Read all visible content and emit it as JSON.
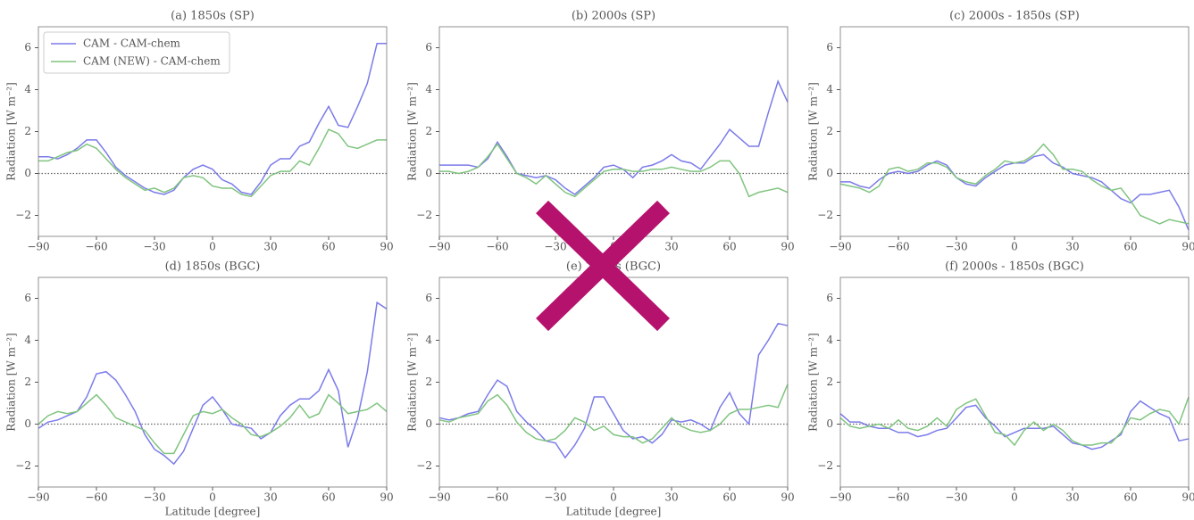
{
  "chart_data": [
    {
      "type": "line",
      "title": "(a) 1850s (SP)",
      "ylabel": "Radiation [W m⁻²]",
      "legend": "upper left",
      "reference_line": 0,
      "x": [
        -90,
        -85,
        -80,
        -75,
        -70,
        -65,
        -60,
        -55,
        -50,
        -45,
        -40,
        -35,
        -30,
        -25,
        -20,
        -15,
        -10,
        -5,
        0,
        5,
        10,
        15,
        20,
        25,
        30,
        35,
        40,
        45,
        50,
        55,
        60,
        65,
        70,
        75,
        80,
        85,
        90
      ],
      "series": [
        {
          "name": "CAM - CAM-chem",
          "color": "#7b7bea",
          "values": [
            0.8,
            0.8,
            0.7,
            0.9,
            1.2,
            1.6,
            1.6,
            1.0,
            0.3,
            -0.1,
            -0.4,
            -0.7,
            -0.9,
            -1.0,
            -0.8,
            -0.2,
            0.2,
            0.4,
            0.2,
            -0.3,
            -0.5,
            -0.9,
            -1.0,
            -0.4,
            0.4,
            0.7,
            0.7,
            1.3,
            1.5,
            2.4,
            3.2,
            2.3,
            2.2,
            3.2,
            4.3,
            6.2,
            6.2
          ]
        },
        {
          "name": "CAM (NEW) - CAM-chem",
          "color": "#80c47f",
          "values": [
            0.6,
            0.6,
            0.8,
            1.0,
            1.1,
            1.4,
            1.2,
            0.7,
            0.2,
            -0.2,
            -0.5,
            -0.8,
            -0.7,
            -0.9,
            -0.7,
            -0.2,
            -0.1,
            -0.2,
            -0.6,
            -0.7,
            -0.7,
            -1.0,
            -1.1,
            -0.6,
            -0.1,
            0.1,
            0.1,
            0.6,
            0.4,
            1.2,
            2.1,
            1.9,
            1.3,
            1.2,
            1.4,
            1.6,
            1.6
          ]
        }
      ],
      "xlim": [
        -90,
        90
      ],
      "xticks": [
        {
          "value": -90,
          "label": "−90"
        },
        {
          "value": -60,
          "label": "−60"
        },
        {
          "value": -30,
          "label": "−30"
        },
        0,
        30,
        60,
        90
      ],
      "ylim": [
        -3,
        7
      ],
      "yticks": [
        {
          "value": -2,
          "label": "−2"
        },
        0,
        2,
        4,
        6
      ]
    },
    {
      "type": "line",
      "title": "(b) 2000s (SP)",
      "ylabel": "Radiation [W m⁻²]",
      "reference_line": 0,
      "x": [
        -90,
        -85,
        -80,
        -75,
        -70,
        -65,
        -60,
        -55,
        -50,
        -45,
        -40,
        -35,
        -30,
        -25,
        -20,
        -15,
        -10,
        -5,
        0,
        5,
        10,
        15,
        20,
        25,
        30,
        35,
        40,
        45,
        50,
        55,
        60,
        65,
        70,
        75,
        80,
        85,
        90
      ],
      "series": [
        {
          "color": "#7b7bea",
          "values": [
            0.4,
            0.4,
            0.4,
            0.4,
            0.3,
            0.7,
            1.5,
            0.8,
            0.0,
            -0.1,
            -0.2,
            -0.1,
            -0.3,
            -0.7,
            -1.0,
            -0.6,
            -0.2,
            0.3,
            0.4,
            0.2,
            -0.2,
            0.3,
            0.4,
            0.6,
            0.9,
            0.6,
            0.5,
            0.2,
            0.8,
            1.4,
            2.1,
            1.7,
            1.3,
            1.3,
            2.9,
            4.4,
            3.4
          ]
        },
        {
          "color": "#80c47f",
          "values": [
            0.1,
            0.1,
            0.0,
            0.1,
            0.3,
            0.8,
            1.4,
            0.7,
            0.0,
            -0.2,
            -0.5,
            -0.1,
            -0.5,
            -0.9,
            -1.1,
            -0.7,
            -0.3,
            0.1,
            0.2,
            0.2,
            0.1,
            0.1,
            0.2,
            0.2,
            0.3,
            0.2,
            0.1,
            0.1,
            0.3,
            0.6,
            0.6,
            0.0,
            -1.1,
            -0.9,
            -0.8,
            -0.7,
            -0.9
          ]
        }
      ],
      "xlim": [
        -90,
        90
      ],
      "xticks": [
        {
          "value": -90,
          "label": "−90"
        },
        {
          "value": -60,
          "label": "−60"
        },
        {
          "value": -30,
          "label": "−30"
        },
        0,
        30,
        60,
        90
      ],
      "ylim": [
        -3,
        7
      ],
      "yticks": [
        {
          "value": -2,
          "label": "−2"
        },
        0,
        2,
        4,
        6
      ]
    },
    {
      "type": "line",
      "title": "(c) 2000s - 1850s (SP)",
      "ylabel": "Radiation [W m⁻²]",
      "reference_line": 0,
      "x": [
        -90,
        -85,
        -80,
        -75,
        -70,
        -65,
        -60,
        -55,
        -50,
        -45,
        -40,
        -35,
        -30,
        -25,
        -20,
        -15,
        -10,
        -5,
        0,
        5,
        10,
        15,
        20,
        25,
        30,
        35,
        40,
        45,
        50,
        55,
        60,
        65,
        70,
        75,
        80,
        85,
        90
      ],
      "series": [
        {
          "color": "#7b7bea",
          "values": [
            -0.4,
            -0.4,
            -0.6,
            -0.7,
            -0.3,
            0.0,
            0.1,
            0.0,
            0.1,
            0.4,
            0.6,
            0.4,
            -0.2,
            -0.5,
            -0.6,
            -0.2,
            0.1,
            0.4,
            0.5,
            0.5,
            0.8,
            0.9,
            0.5,
            0.3,
            0.0,
            -0.1,
            -0.2,
            -0.4,
            -0.8,
            -1.2,
            -1.4,
            -1.0,
            -1.0,
            -0.9,
            -0.8,
            -1.6,
            -2.7
          ]
        },
        {
          "color": "#80c47f",
          "values": [
            -0.5,
            -0.6,
            -0.7,
            -0.9,
            -0.6,
            0.2,
            0.3,
            0.1,
            0.2,
            0.5,
            0.5,
            0.3,
            -0.2,
            -0.4,
            -0.5,
            -0.1,
            0.2,
            0.6,
            0.5,
            0.6,
            0.9,
            1.4,
            0.9,
            0.2,
            0.2,
            0.1,
            -0.3,
            -0.6,
            -0.8,
            -0.7,
            -1.3,
            -2.0,
            -2.2,
            -2.4,
            -2.2,
            -2.3,
            -2.4
          ]
        }
      ],
      "xlim": [
        -90,
        90
      ],
      "xticks": [
        {
          "value": -90,
          "label": "−90"
        },
        {
          "value": -60,
          "label": "−60"
        },
        {
          "value": -30,
          "label": "−30"
        },
        0,
        30,
        60,
        90
      ],
      "ylim": [
        -3,
        7
      ],
      "yticks": [
        {
          "value": -2,
          "label": "−2"
        },
        0,
        2,
        4,
        6
      ]
    },
    {
      "type": "line",
      "title": "(d) 1850s (BGC)",
      "ylabel": "Radiation [W m⁻²]",
      "xlabel": "Latitude [degree]",
      "reference_line": 0,
      "x": [
        -90,
        -85,
        -80,
        -75,
        -70,
        -65,
        -60,
        -55,
        -50,
        -45,
        -40,
        -35,
        -30,
        -25,
        -20,
        -15,
        -10,
        -5,
        0,
        5,
        10,
        15,
        20,
        25,
        30,
        35,
        40,
        45,
        50,
        55,
        60,
        65,
        70,
        75,
        80,
        85,
        90
      ],
      "series": [
        {
          "color": "#7b7bea",
          "values": [
            -0.2,
            0.1,
            0.2,
            0.4,
            0.6,
            1.3,
            2.4,
            2.5,
            2.1,
            1.4,
            0.6,
            -0.5,
            -1.2,
            -1.5,
            -1.9,
            -1.3,
            -0.2,
            0.9,
            1.3,
            0.7,
            0.0,
            -0.1,
            -0.2,
            -0.7,
            -0.4,
            0.4,
            0.9,
            1.2,
            1.2,
            1.6,
            2.6,
            1.6,
            -1.1,
            0.3,
            2.5,
            5.8,
            5.5
          ]
        },
        {
          "color": "#80c47f",
          "values": [
            0.0,
            0.4,
            0.6,
            0.5,
            0.6,
            1.0,
            1.4,
            0.9,
            0.3,
            0.1,
            -0.1,
            -0.3,
            -0.9,
            -1.4,
            -1.4,
            -0.5,
            0.4,
            0.6,
            0.5,
            0.7,
            0.3,
            0.0,
            -0.5,
            -0.6,
            -0.4,
            -0.1,
            0.3,
            0.9,
            0.3,
            0.5,
            1.4,
            1.0,
            0.5,
            0.6,
            0.7,
            1.0,
            0.6
          ]
        }
      ],
      "xlim": [
        -90,
        90
      ],
      "xticks": [
        {
          "value": -90,
          "label": "−90"
        },
        {
          "value": -60,
          "label": "−60"
        },
        {
          "value": -30,
          "label": "−30"
        },
        0,
        30,
        60,
        90
      ],
      "ylim": [
        -3,
        7
      ],
      "yticks": [
        {
          "value": -2,
          "label": "−2"
        },
        0,
        2,
        4,
        6
      ]
    },
    {
      "type": "line",
      "title": "(e) 2000s (BGC)",
      "ylabel": "Radiation [W m⁻²]",
      "xlabel": "Latitude [degree]",
      "reference_line": 0,
      "x": [
        -90,
        -85,
        -80,
        -75,
        -70,
        -65,
        -60,
        -55,
        -50,
        -45,
        -40,
        -35,
        -30,
        -25,
        -20,
        -15,
        -10,
        -5,
        0,
        5,
        10,
        15,
        20,
        25,
        30,
        35,
        40,
        45,
        50,
        55,
        60,
        65,
        70,
        75,
        80,
        85,
        90
      ],
      "series": [
        {
          "color": "#7b7bea",
          "values": [
            0.3,
            0.2,
            0.3,
            0.5,
            0.6,
            1.4,
            2.1,
            1.8,
            0.6,
            0.1,
            -0.3,
            -0.8,
            -0.9,
            -1.6,
            -1.0,
            -0.2,
            1.3,
            1.3,
            0.5,
            -0.3,
            -0.7,
            -0.6,
            -0.9,
            -0.5,
            0.2,
            0.1,
            0.2,
            0.0,
            -0.3,
            0.8,
            1.5,
            0.5,
            0.0,
            3.3,
            4.0,
            4.8,
            4.7
          ]
        },
        {
          "color": "#80c47f",
          "values": [
            0.2,
            0.1,
            0.3,
            0.4,
            0.5,
            1.1,
            1.4,
            0.9,
            0.1,
            -0.4,
            -0.7,
            -0.8,
            -0.7,
            -0.3,
            0.3,
            0.1,
            -0.3,
            -0.1,
            -0.5,
            -0.6,
            -0.6,
            -0.9,
            -0.7,
            -0.2,
            0.3,
            -0.1,
            -0.3,
            -0.4,
            -0.3,
            0.0,
            0.5,
            0.7,
            0.7,
            0.8,
            0.9,
            0.8,
            1.9
          ]
        }
      ],
      "xlim": [
        -90,
        90
      ],
      "xticks": [
        {
          "value": -90,
          "label": "−90"
        },
        {
          "value": -60,
          "label": "−60"
        },
        {
          "value": -30,
          "label": "−30"
        },
        0,
        30,
        60,
        90
      ],
      "ylim": [
        -3,
        7
      ],
      "yticks": [
        {
          "value": -2,
          "label": "−2"
        },
        0,
        2,
        4,
        6
      ]
    },
    {
      "type": "line",
      "title": "(f) 2000s - 1850s (BGC)",
      "ylabel": "Radiation [W m⁻²]",
      "reference_line": 0,
      "x": [
        -90,
        -85,
        -80,
        -75,
        -70,
        -65,
        -60,
        -55,
        -50,
        -45,
        -40,
        -35,
        -30,
        -25,
        -20,
        -15,
        -10,
        -5,
        0,
        5,
        10,
        15,
        20,
        25,
        30,
        35,
        40,
        45,
        50,
        55,
        60,
        65,
        70,
        75,
        80,
        85,
        90
      ],
      "series": [
        {
          "color": "#7b7bea",
          "values": [
            0.5,
            0.1,
            0.1,
            -0.1,
            -0.2,
            -0.2,
            -0.4,
            -0.4,
            -0.6,
            -0.5,
            -0.3,
            -0.2,
            0.3,
            0.8,
            0.9,
            0.3,
            -0.1,
            -0.6,
            -0.4,
            -0.2,
            -0.2,
            -0.2,
            -0.1,
            -0.5,
            -0.9,
            -1.0,
            -1.2,
            -1.1,
            -0.8,
            -0.5,
            0.6,
            1.1,
            0.8,
            0.5,
            0.3,
            -0.8,
            -0.7
          ]
        },
        {
          "color": "#80c47f",
          "values": [
            0.3,
            -0.1,
            -0.2,
            -0.1,
            0.0,
            -0.2,
            0.2,
            -0.2,
            -0.3,
            -0.1,
            0.3,
            -0.1,
            0.7,
            1.0,
            1.2,
            0.4,
            -0.4,
            -0.5,
            -1.0,
            -0.3,
            0.1,
            -0.3,
            0.0,
            -0.3,
            -0.8,
            -1.0,
            -1.0,
            -0.9,
            -0.9,
            -0.4,
            0.3,
            0.2,
            0.5,
            0.7,
            0.6,
            0.0,
            1.3
          ]
        }
      ],
      "xlim": [
        -90,
        90
      ],
      "xticks": [
        {
          "value": -90,
          "label": "−90"
        },
        {
          "value": -60,
          "label": "−60"
        },
        {
          "value": -30,
          "label": "−30"
        },
        0,
        30,
        60,
        90
      ],
      "ylim": [
        -3,
        7
      ],
      "yticks": [
        {
          "value": -2,
          "label": "−2"
        },
        0,
        2,
        4,
        6
      ]
    }
  ]
}
